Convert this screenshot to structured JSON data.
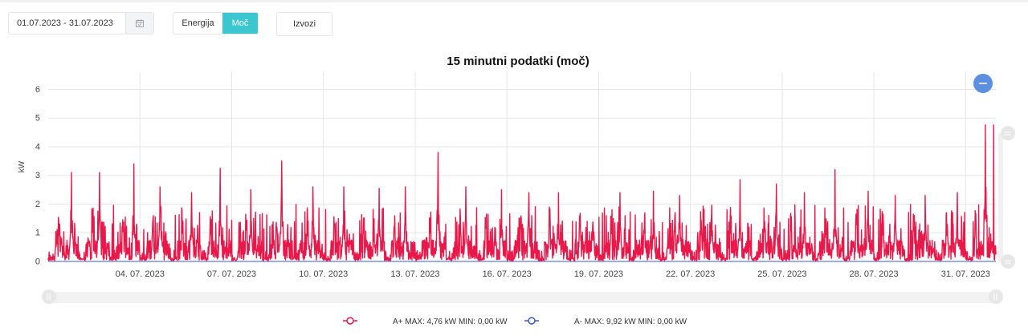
{
  "controls": {
    "date_range": "01.07.2023 - 31.07.2023",
    "calendar_icon": "calendar-check-icon",
    "toggle_energy": "Energija",
    "toggle_power": "Moč",
    "toggle_active": "Moč",
    "export": "Izvozi",
    "accent_color": "#3cc6cf"
  },
  "chart_data": {
    "type": "line",
    "title": "15 minutni podatki (moč)",
    "ylabel": "kW",
    "xlabel": "",
    "ylim": [
      0,
      6.6
    ],
    "yticks": [
      "0",
      "1",
      "2",
      "3",
      "4",
      "5",
      "6"
    ],
    "xticks": [
      "04. 07. 2023",
      "07. 07. 2023",
      "10. 07. 2023",
      "13. 07. 2023",
      "16. 07. 2023",
      "19. 07. 2023",
      "22. 07. 2023",
      "25. 07. 2023",
      "28. 07. 2023",
      "31. 07. 2023"
    ],
    "x_range": [
      "2023-07-01 00:00",
      "2023-07-31 23:45"
    ],
    "resolution": "15 min",
    "grid": true,
    "zoom_icon": "minus-icon",
    "series": [
      {
        "name": "A+",
        "color": "#e8194a",
        "legend_label": "A+ MAX: 4,76 kW MIN: 0,00 kW",
        "max": 4.76,
        "min": 0.0,
        "daily_peaks": [
          3.1,
          3.1,
          3.4,
          2.6,
          2.4,
          3.25,
          2.5,
          3.5,
          2.6,
          2.6,
          2.55,
          2.6,
          3.8,
          2.6,
          2.5,
          2.4,
          2.4,
          2.45,
          2.4,
          2.45,
          2.3,
          2.45,
          2.85,
          2.7,
          2.4,
          3.2,
          2.45,
          2.3,
          2.3,
          2.4,
          4.76
        ]
      },
      {
        "name": "A-",
        "color": "#3d5bc4",
        "legend_label": "A- MAX: 9,92 kW MIN: 0,00 kW",
        "max": 9.92,
        "min": 0.0
      }
    ],
    "legend_position": "bottom"
  }
}
